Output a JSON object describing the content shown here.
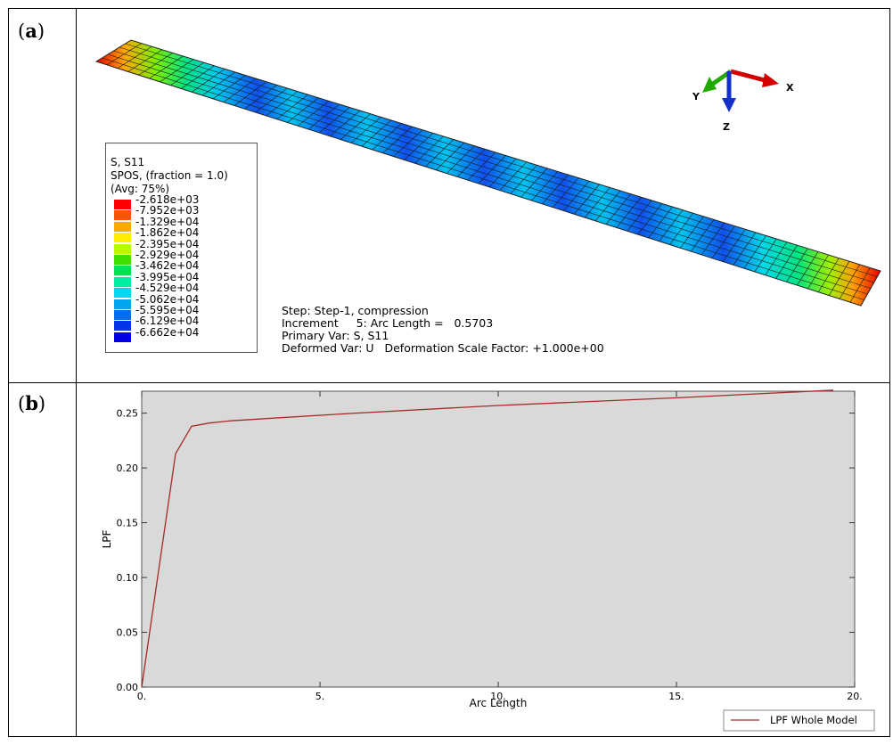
{
  "panel_a": {
    "label": "a",
    "legend": {
      "title_lines": [
        "S, S11",
        "SPOS, (fraction = 1.0)",
        "(Avg: 75%)"
      ],
      "values": [
        "-2.618e+03",
        "-7.952e+03",
        "-1.329e+04",
        "-1.862e+04",
        "-2.395e+04",
        "-2.929e+04",
        "-3.462e+04",
        "-3.995e+04",
        "-4.529e+04",
        "-5.062e+04",
        "-5.595e+04",
        "-6.129e+04",
        "-6.662e+04"
      ],
      "colors": [
        "#ff0000",
        "#ff5500",
        "#ffaa00",
        "#ffee00",
        "#b4ff00",
        "#3fe000",
        "#00e34b",
        "#00eea4",
        "#00d8ee",
        "#00a6f0",
        "#006eee",
        "#0036e8",
        "#0000e0"
      ]
    },
    "info_lines": [
      "Step: Step-1, compression",
      "Increment     5: Arc Length =   0.5703",
      "Primary Var: S, S11",
      "Deformed Var: U   Deformation Scale Factor: +1.000e+00"
    ],
    "triad": {
      "x": "X",
      "y": "Y",
      "z": "Z",
      "x_color": "#d40000",
      "y_color": "#22aa00",
      "z_color": "#1530c8"
    }
  },
  "panel_b": {
    "label": "b",
    "chart_data": {
      "type": "line",
      "xlabel": "Arc Length",
      "ylabel": "LPF",
      "xlim": [
        0,
        20
      ],
      "ylim": [
        0,
        0.27
      ],
      "x_ticks": [
        "0.",
        "5.",
        "10.",
        "15.",
        "20."
      ],
      "y_ticks": [
        "0.00",
        "0.05",
        "0.10",
        "0.15",
        "0.20",
        "0.25"
      ],
      "series": [
        {
          "name": "LPF Whole Model",
          "color": "#a52a2a",
          "x": [
            0,
            0.95,
            1.4,
            1.9,
            2.5,
            3.5,
            6,
            10,
            15,
            19.4
          ],
          "y": [
            0,
            0.213,
            0.238,
            0.241,
            0.243,
            0.245,
            0.25,
            0.257,
            0.264,
            0.271
          ]
        }
      ],
      "legend_position": "bottom-right",
      "background": "#d9d9d9"
    }
  }
}
